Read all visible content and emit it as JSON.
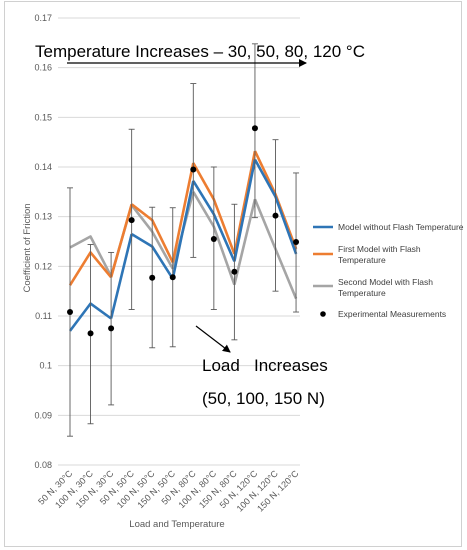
{
  "chart_data": {
    "type": "line",
    "title": "",
    "xlabel": "Load and Temperature",
    "ylabel": "Coefficient of Friction",
    "ylim": [
      0.08,
      0.17
    ],
    "yticks": [
      "0.08",
      "0.09",
      "0.1",
      "0.11",
      "0.12",
      "0.13",
      "0.14",
      "0.15",
      "0.16",
      "0.17"
    ],
    "grid": true,
    "legend_position": "right",
    "categories": [
      "50 N, 30°C",
      "100 N, 30°C",
      "150 N, 30°C",
      "50 N, 50°C",
      "100 N, 50°C",
      "150 N, 50°C",
      "50 N, 80°C",
      "100 N, 80°C",
      "150 N, 80°C",
      "50 N, 120°C",
      "100 N, 120°C",
      "150 N, 120°C"
    ],
    "series": [
      {
        "name": "Model without Flash Temperature",
        "color": "#2e75b6",
        "values": [
          0.107,
          0.1125,
          0.1095,
          0.1265,
          0.124,
          0.1175,
          0.1372,
          0.1305,
          0.121,
          0.1415,
          0.134,
          0.1225
        ]
      },
      {
        "name": "First Model with Flash Temperature",
        "color": "#ed7d31",
        "values": [
          0.1162,
          0.1228,
          0.1178,
          0.1325,
          0.1293,
          0.1208,
          0.1408,
          0.1335,
          0.1225,
          0.1432,
          0.1345,
          0.1235
        ]
      },
      {
        "name": "Second Model with Flash Temperature",
        "color": "#a5a5a5",
        "values": [
          0.1238,
          0.126,
          0.118,
          0.1323,
          0.127,
          0.1195,
          0.135,
          0.128,
          0.1163,
          0.1335,
          0.1235,
          0.1135
        ]
      }
    ],
    "measurements": {
      "name": "Experimental Measurements",
      "color": "#000000",
      "values": [
        0.1108,
        0.1065,
        0.1075,
        0.1293,
        0.1177,
        0.1178,
        0.1395,
        0.1255,
        0.1189,
        0.1478,
        0.1302,
        0.1249
      ],
      "error_low": [
        0.0858,
        0.0883,
        0.0921,
        0.1113,
        0.1036,
        0.1038,
        0.1218,
        0.1113,
        0.1052,
        0.1298,
        0.115,
        0.1108
      ],
      "error_high": [
        0.1358,
        0.1244,
        0.1228,
        0.1476,
        0.1319,
        0.1318,
        0.1568,
        0.14,
        0.1325,
        0.1648,
        0.1455,
        0.1388
      ]
    }
  },
  "annotations": {
    "temperature_label": "Temperature Increases – 30, 50, 80, 120 °C",
    "load_label_line1": "Load   Increases",
    "load_label_line2": "(50, 100, 150 N)"
  }
}
